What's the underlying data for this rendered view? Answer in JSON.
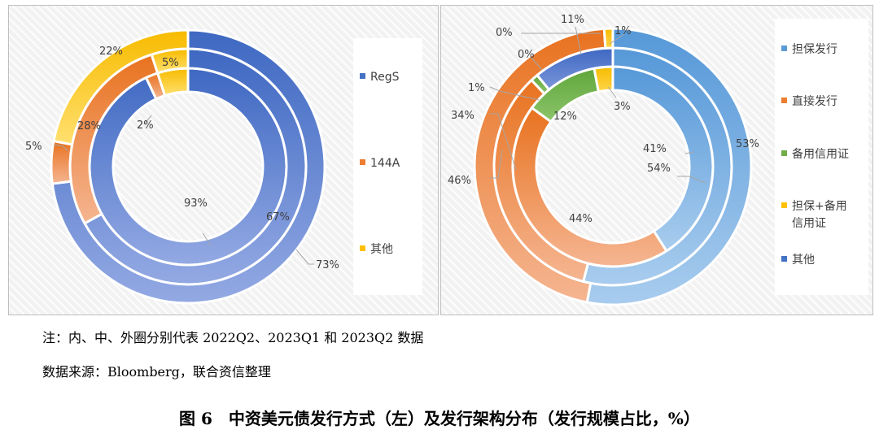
{
  "chart_data": [
    {
      "type": "donut",
      "rings": [
        "2022Q2",
        "2023Q1",
        "2023Q2"
      ],
      "categories": [
        "RegS",
        "144A",
        "其他"
      ],
      "series": [
        {
          "ring": "2022Q2",
          "values": [
            93,
            2,
            5
          ]
        },
        {
          "ring": "2023Q1",
          "values": [
            67,
            28,
            5
          ]
        },
        {
          "ring": "2023Q2",
          "values": [
            73,
            5,
            22
          ]
        }
      ],
      "value_labels": {
        "regs": [
          "93%",
          "67%",
          "73%"
        ],
        "a144": [
          "2%",
          "28%",
          "5%"
        ],
        "other": [
          "5%",
          "22%"
        ]
      },
      "legend": [
        {
          "label": "RegS",
          "color": "#4472c4"
        },
        {
          "label": "144A",
          "color": "#ed7d31"
        },
        {
          "label": "其他",
          "color": "#ffc000"
        }
      ],
      "legend_position": "right"
    },
    {
      "type": "donut",
      "rings": [
        "2022Q2",
        "2023Q1",
        "2023Q2"
      ],
      "categories": [
        "担保发行",
        "直接发行",
        "备用信用证",
        "担保+备用信用证",
        "其他"
      ],
      "series": [
        {
          "ring": "2022Q2",
          "values": [
            41,
            44,
            12,
            3,
            0
          ]
        },
        {
          "ring": "2023Q1",
          "values": [
            54,
            34,
            1,
            0,
            11
          ]
        },
        {
          "ring": "2023Q2",
          "values": [
            53,
            46,
            0,
            1,
            0
          ]
        }
      ],
      "value_labels": {
        "guarantee": [
          "41%",
          "54%",
          "53%"
        ],
        "direct": [
          "44%",
          "34%",
          "46%"
        ],
        "sblc": [
          "12%",
          "1%",
          "0%"
        ],
        "guar_sblc": [
          "3%",
          "0%",
          "1%"
        ],
        "other": [
          "11%"
        ]
      },
      "legend": [
        {
          "label": "担保发行",
          "color": "#5b9bd5"
        },
        {
          "label": "直接发行",
          "color": "#ed7d31"
        },
        {
          "label": "备用信用证",
          "color": "#70ad47"
        },
        {
          "label": "担保+备用\n信用证",
          "color": "#ffc000"
        },
        {
          "label": "其他",
          "color": "#4472c4"
        }
      ],
      "legend_position": "right"
    }
  ],
  "notes": {
    "line1": "注：内、中、外圈分别代表 2022Q2、2023Q1 和 2023Q2 数据",
    "line2": "数据来源：Bloomberg，联合资信整理"
  },
  "caption": "图 6　中资美元债发行方式（左）及发行架构分布（发行规模占比，%）"
}
